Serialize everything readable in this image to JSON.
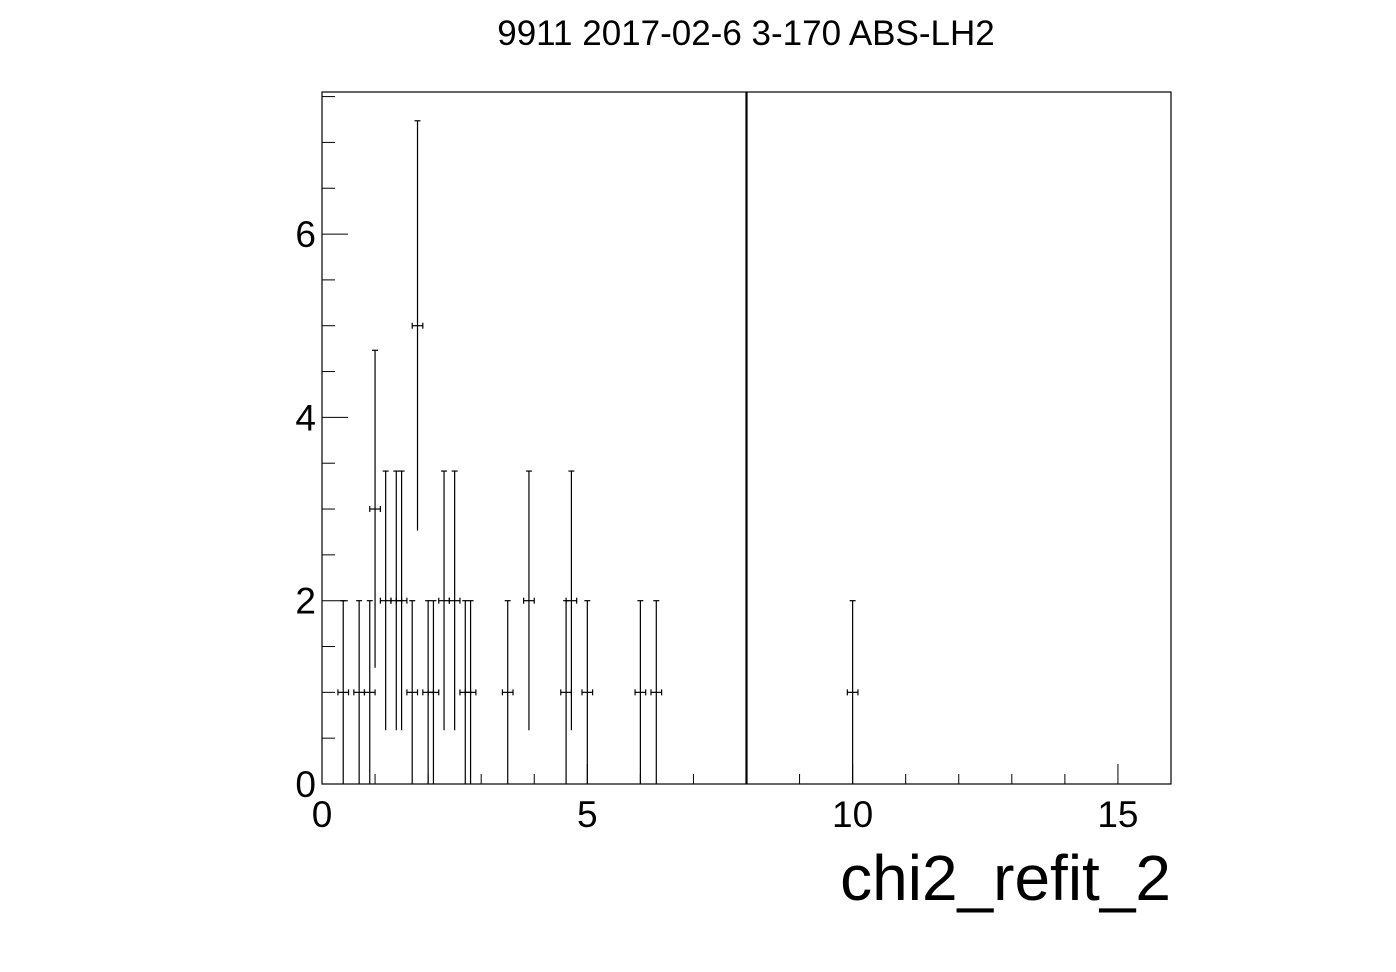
{
  "chart_data": {
    "type": "scatter",
    "title": "9911 2017-02-6 3-170 ABS-LH2",
    "xlabel": "chi2_refit_2",
    "ylabel": "",
    "xlim": [
      0,
      16
    ],
    "ylim": [
      0,
      7.55
    ],
    "x_ticks": [
      0,
      5,
      10,
      15
    ],
    "y_ticks": [
      0,
      2,
      4,
      6
    ],
    "grid": false,
    "bin_width": 0.2,
    "cut_line_x": 8,
    "series": [
      {
        "points": [
          {
            "x": 0.4,
            "y": 1
          },
          {
            "x": 0.7,
            "y": 1
          },
          {
            "x": 0.9,
            "y": 1
          },
          {
            "x": 1.0,
            "y": 3
          },
          {
            "x": 1.2,
            "y": 2
          },
          {
            "x": 1.4,
            "y": 2
          },
          {
            "x": 1.5,
            "y": 2
          },
          {
            "x": 1.7,
            "y": 1
          },
          {
            "x": 1.8,
            "y": 5
          },
          {
            "x": 2.0,
            "y": 1
          },
          {
            "x": 2.1,
            "y": 1
          },
          {
            "x": 2.3,
            "y": 2
          },
          {
            "x": 2.5,
            "y": 2
          },
          {
            "x": 2.7,
            "y": 1
          },
          {
            "x": 2.8,
            "y": 1
          },
          {
            "x": 3.5,
            "y": 1
          },
          {
            "x": 3.9,
            "y": 2
          },
          {
            "x": 4.6,
            "y": 1
          },
          {
            "x": 4.7,
            "y": 2
          },
          {
            "x": 5.0,
            "y": 1
          },
          {
            "x": 6.0,
            "y": 1
          },
          {
            "x": 6.3,
            "y": 1
          },
          {
            "x": 10.0,
            "y": 1
          }
        ]
      }
    ]
  }
}
